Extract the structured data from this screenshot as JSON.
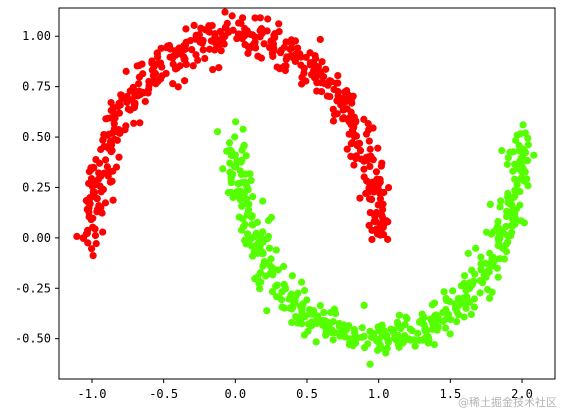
{
  "chart_data": {
    "type": "scatter",
    "title": "",
    "xlabel": "",
    "ylabel": "",
    "xlim": [
      -1.23,
      2.23
    ],
    "ylim": [
      -0.7,
      1.14
    ],
    "grid": false,
    "x_ticks": [
      -1.0,
      -0.5,
      0.0,
      0.5,
      1.0,
      1.5,
      2.0
    ],
    "y_ticks": [
      -0.5,
      -0.25,
      0.0,
      0.25,
      0.5,
      0.75,
      1.0
    ],
    "x_tick_labels": [
      "-1.0",
      "-0.5",
      "0.0",
      "0.5",
      "1.0",
      "1.5",
      "2.0"
    ],
    "y_tick_labels": [
      "-0.50",
      "-0.25",
      "0.00",
      "0.25",
      "0.50",
      "0.75",
      "1.00"
    ],
    "series": [
      {
        "color": "#ff0000",
        "shape": "upper-moon",
        "count": 500,
        "noise": 0.05,
        "center": [
          0.0,
          0.0
        ],
        "radius": 1.0,
        "angle_range_deg": [
          0,
          180
        ]
      },
      {
        "color": "#55ff00",
        "shape": "lower-moon",
        "count": 500,
        "noise": 0.05,
        "center": [
          1.0,
          0.5
        ],
        "radius": 1.0,
        "angle_range_deg": [
          180,
          360
        ]
      }
    ]
  },
  "watermark": {
    "text": "@稀土掘金技术社区"
  }
}
